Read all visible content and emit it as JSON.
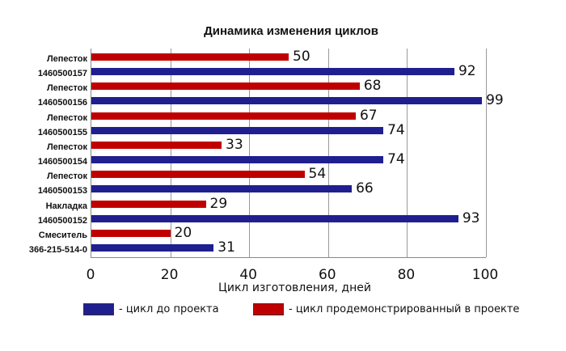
{
  "chart_data": {
    "type": "bar",
    "orientation": "horizontal",
    "title": "Динамика изменения циклов",
    "xlabel": "Цикл изготовления, дней",
    "ylabel": "",
    "xlim": [
      0,
      100
    ],
    "xticks": [
      0,
      20,
      40,
      60,
      80,
      100
    ],
    "grid": true,
    "legend_position": "bottom",
    "categories": [
      "Лепесток 1460500157",
      "Лепесток 1460500156",
      "Лепесток 1460500155",
      "Лепесток 1460500154",
      "Лепесток 1460500153",
      "Накладка 1460500152",
      "Смеситель 366-215-514-0"
    ],
    "series": [
      {
        "name": "- цикл продемонстрированный в проекте",
        "color": "#c00000",
        "values": [
          50,
          68,
          67,
          33,
          54,
          29,
          20
        ]
      },
      {
        "name": "- цикл до проекта",
        "color": "#1f1f8f",
        "values": [
          92,
          99,
          74,
          74,
          66,
          93,
          31
        ]
      }
    ]
  },
  "labels": {
    "title": "Динамика изменения циклов",
    "xlabel": "Цикл изготовления, дней",
    "legend_blue": "- цикл до проекта",
    "legend_red": "-  цикл продемонстрированный в проекте"
  },
  "cats": [
    {
      "l1": "Лепесток",
      "l2": "1460500157"
    },
    {
      "l1": "Лепесток",
      "l2": "1460500156"
    },
    {
      "l1": "Лепесток",
      "l2": "1460500155"
    },
    {
      "l1": "Лепесток",
      "l2": "1460500154"
    },
    {
      "l1": "Лепесток",
      "l2": "1460500153"
    },
    {
      "l1": "Накладка",
      "l2": "1460500152"
    },
    {
      "l1": "Смеситель",
      "l2": "366-215-514-0"
    }
  ]
}
